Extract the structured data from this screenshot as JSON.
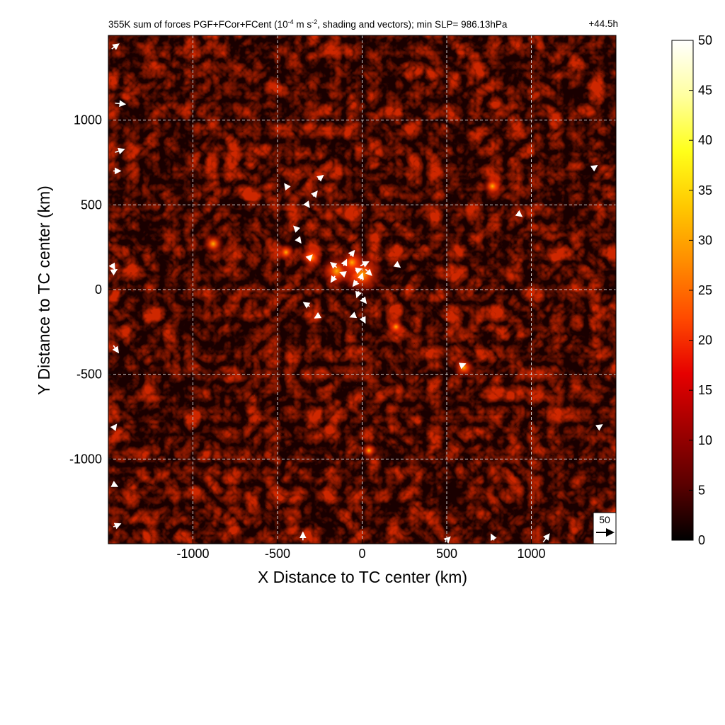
{
  "title": {
    "text_a": "355K sum of forces PGF+FCor+FCent (10",
    "exp1": "-4",
    "text_b": " m s",
    "exp2": "-2",
    "text_c": ", shading and vectors); min SLP= 986.13hPa",
    "time": "+44.5h"
  },
  "chart_data": {
    "type": "heatmap",
    "xlabel": "X Distance to TC center (km)",
    "ylabel": "Y Distance to TC center (km)",
    "xlim": [
      -1500,
      1500
    ],
    "ylim": [
      -1500,
      1500
    ],
    "x_ticks": [
      -1000,
      -500,
      0,
      500,
      1000
    ],
    "y_ticks": [
      1000,
      500,
      0,
      -500,
      -1000
    ],
    "x_tick_labels": [
      "-1000",
      "-500",
      "0",
      "500",
      "1000"
    ],
    "y_tick_labels": [
      "1000",
      "500",
      "0",
      "-500",
      "-1000"
    ],
    "grid": true,
    "grid_spacing_km": 500,
    "colorbar": {
      "min": 0,
      "max": 50,
      "ticks": [
        50,
        45,
        40,
        35,
        30,
        25,
        20,
        15,
        10,
        5,
        0
      ],
      "tick_labels": [
        "50",
        "45",
        "40",
        "35",
        "30",
        "25",
        "20",
        "15",
        "10",
        "5",
        "0"
      ],
      "colormap": [
        "#000000",
        "#5a0000",
        "#a00000",
        "#e60000",
        "#ff4a00",
        "#ff8c00",
        "#ffc800",
        "#ffff1a",
        "#ffffa0",
        "#ffffff"
      ]
    },
    "background_magnitude": 6,
    "hotspots": [
      {
        "x": 0,
        "y": 90,
        "value": 30
      },
      {
        "x": -150,
        "y": 110,
        "value": 22
      },
      {
        "x": -60,
        "y": 160,
        "value": 16
      },
      {
        "x": -300,
        "y": 190,
        "value": 14
      },
      {
        "x": -880,
        "y": 270,
        "value": 13
      },
      {
        "x": 770,
        "y": 610,
        "value": 12
      },
      {
        "x": 600,
        "y": -460,
        "value": 13
      },
      {
        "x": 200,
        "y": -220,
        "value": 9
      },
      {
        "x": 40,
        "y": -950,
        "value": 9
      },
      {
        "x": -450,
        "y": 220,
        "value": 10
      }
    ],
    "vectors": [
      {
        "x": -10,
        "y": 140,
        "u": 40,
        "v": 20
      },
      {
        "x": 20,
        "y": 120,
        "u": 30,
        "v": -30
      },
      {
        "x": -150,
        "y": 130,
        "u": -30,
        "v": 25
      },
      {
        "x": -160,
        "y": 80,
        "u": -20,
        "v": -30
      },
      {
        "x": -110,
        "y": 140,
        "u": 15,
        "v": 30
      },
      {
        "x": -40,
        "y": 110,
        "u": 30,
        "v": 10
      },
      {
        "x": -30,
        "y": 50,
        "u": -20,
        "v": -25
      },
      {
        "x": -10,
        "y": 60,
        "u": 10,
        "v": 30
      },
      {
        "x": -100,
        "y": 90,
        "u": -25,
        "v": 10
      },
      {
        "x": -70,
        "y": 200,
        "u": 20,
        "v": 25
      },
      {
        "x": -20,
        "y": -10,
        "u": -10,
        "v": -30
      },
      {
        "x": 0,
        "y": -50,
        "u": 20,
        "v": -25
      },
      {
        "x": -40,
        "y": -150,
        "u": -25,
        "v": -10
      },
      {
        "x": 0,
        "y": -160,
        "u": 15,
        "v": -30
      },
      {
        "x": -310,
        "y": -100,
        "u": -30,
        "v": 20
      },
      {
        "x": -250,
        "y": -150,
        "u": -25,
        "v": -15
      },
      {
        "x": -320,
        "y": 180,
        "u": 20,
        "v": 20
      },
      {
        "x": -260,
        "y": 650,
        "u": 25,
        "v": 20
      },
      {
        "x": -290,
        "y": 550,
        "u": 20,
        "v": 25
      },
      {
        "x": -330,
        "y": 510,
        "u": 15,
        "v": -20
      },
      {
        "x": -440,
        "y": 600,
        "u": -15,
        "v": 20
      },
      {
        "x": -380,
        "y": 350,
        "u": -20,
        "v": 20
      },
      {
        "x": -380,
        "y": 300,
        "u": 15,
        "v": -20
      },
      {
        "x": 200,
        "y": 150,
        "u": 20,
        "v": -15
      },
      {
        "x": 920,
        "y": 450,
        "u": 20,
        "v": -15
      },
      {
        "x": 580,
        "y": -450,
        "u": 25,
        "v": 10
      },
      {
        "x": -1480,
        "y": 1420,
        "u": 35,
        "v": 25
      },
      {
        "x": -1460,
        "y": 1100,
        "u": 50,
        "v": -5
      },
      {
        "x": -1460,
        "y": 810,
        "u": 45,
        "v": 15
      },
      {
        "x": -1470,
        "y": 700,
        "u": 35,
        "v": 0
      },
      {
        "x": -1480,
        "y": 150,
        "u": 15,
        "v": -25
      },
      {
        "x": -1480,
        "y": 100,
        "u": 25,
        "v": 15
      },
      {
        "x": -1470,
        "y": -330,
        "u": 25,
        "v": -35
      },
      {
        "x": -1470,
        "y": -820,
        "u": 15,
        "v": 20
      },
      {
        "x": -1470,
        "y": -1150,
        "u": 20,
        "v": -10
      },
      {
        "x": -1470,
        "y": -1400,
        "u": 35,
        "v": 15
      },
      {
        "x": -350,
        "y": -1480,
        "u": 0,
        "v": 40
      },
      {
        "x": 1070,
        "y": -1490,
        "u": 30,
        "v": 40
      },
      {
        "x": 780,
        "y": -1480,
        "u": -15,
        "v": 30
      },
      {
        "x": 490,
        "y": -1490,
        "u": 25,
        "v": 25
      },
      {
        "x": 1370,
        "y": 720,
        "u": 15,
        "v": 10
      },
      {
        "x": 1400,
        "y": -810,
        "u": 15,
        "v": 10
      }
    ],
    "reference_vector": {
      "magnitude": 50,
      "label": "50"
    }
  }
}
